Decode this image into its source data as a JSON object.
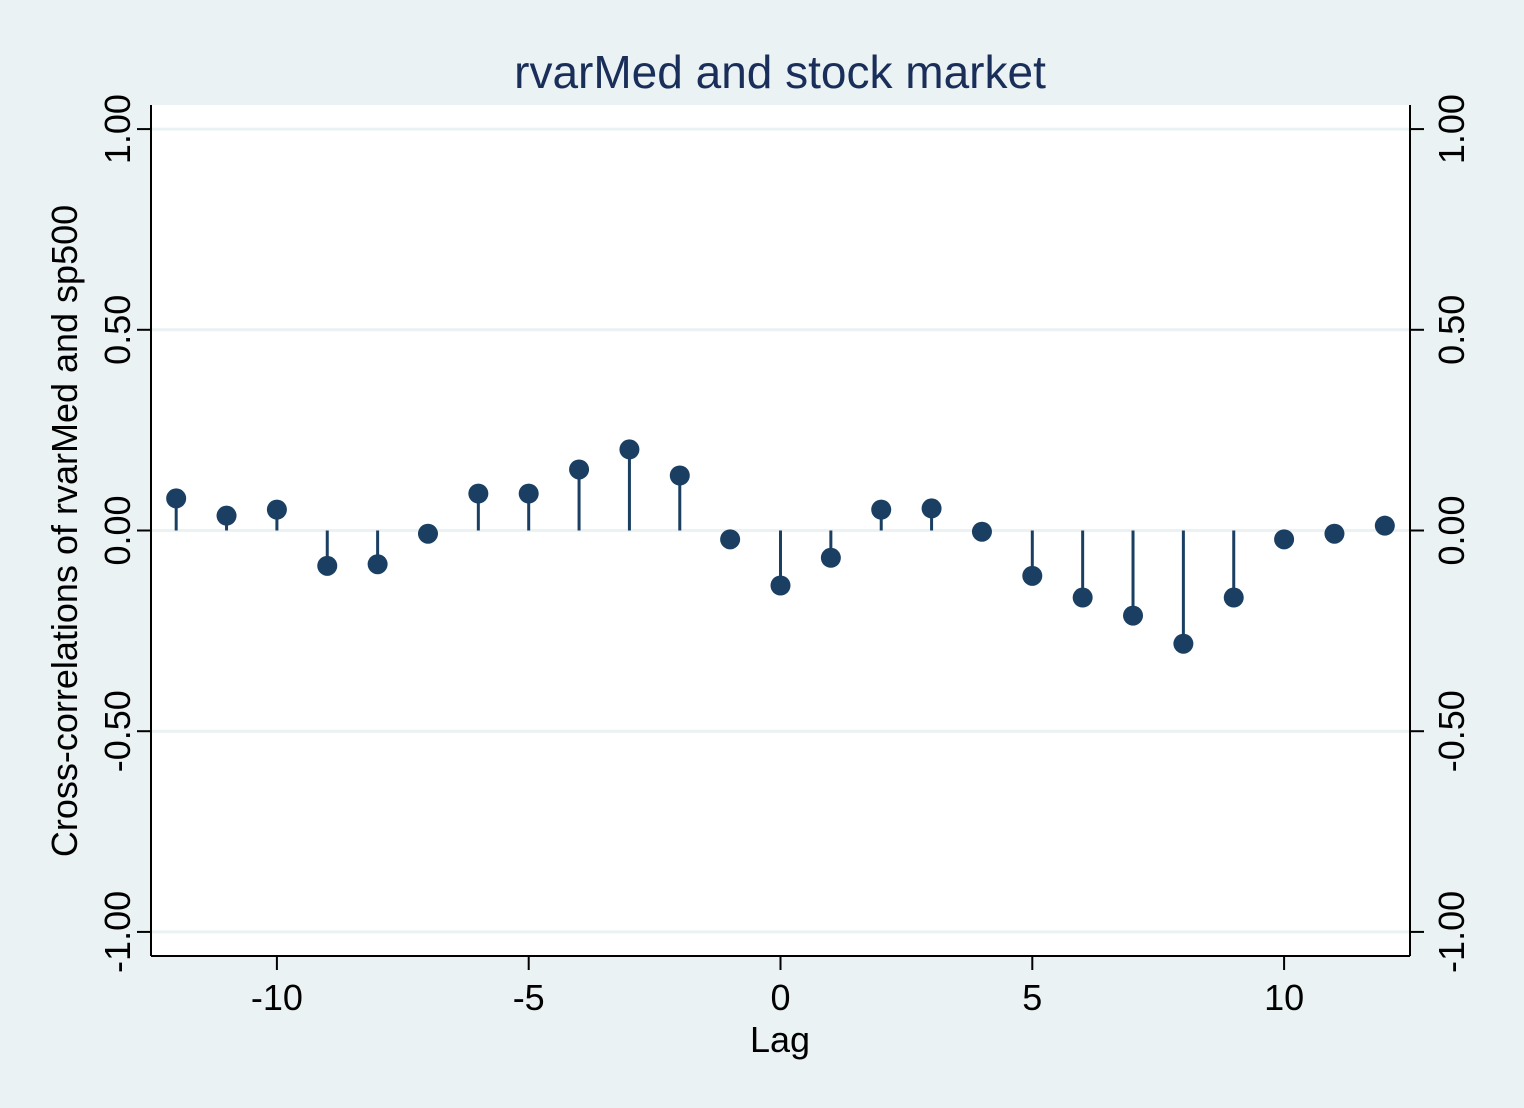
{
  "chart_data": {
    "type": "stem",
    "title": "rvarMed and stock market",
    "xlabel": "Lag",
    "ylabel": "Cross-correlations of rvarMed and sp500",
    "xlim": [
      -12.5,
      12.5
    ],
    "ylim": [
      -1.06,
      1.06
    ],
    "x_ticks": [
      -10,
      -5,
      0,
      5,
      10
    ],
    "x_tick_labels": [
      "-10",
      "-5",
      "0",
      "5",
      "10"
    ],
    "y_ticks": [
      -1,
      -0.5,
      0,
      0.5,
      1
    ],
    "y_tick_labels": [
      "-1.00",
      "-0.50",
      "0.00",
      "0.50",
      "1.00"
    ],
    "right_axis": true,
    "grid": "horizontal",
    "x": [
      -12,
      -11,
      -10,
      -9,
      -8,
      -7,
      -6,
      -5,
      -4,
      -3,
      -2,
      -1,
      0,
      1,
      2,
      3,
      4,
      5,
      6,
      7,
      8,
      9,
      10,
      11,
      12
    ],
    "y": [
      0.08,
      0.037,
      0.052,
      -0.088,
      -0.084,
      -0.008,
      0.092,
      0.092,
      0.152,
      0.202,
      0.137,
      -0.022,
      -0.137,
      -0.068,
      0.052,
      0.055,
      -0.003,
      -0.113,
      -0.167,
      -0.212,
      -0.282,
      -0.167,
      -0.022,
      -0.008,
      0.012
    ],
    "colors": {
      "background": "#eaf2f3",
      "plot_background": "#ffffff",
      "marker": "#1a3f62",
      "grid": "#eaf2f3",
      "title": "#1a2e5a"
    }
  }
}
